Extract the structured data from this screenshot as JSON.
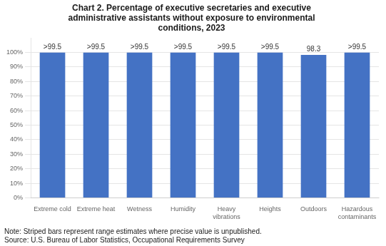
{
  "chart_data": {
    "type": "bar",
    "title": "Chart 2. Percentage of executive secretaries and executive\nadministrative assistants without exposure to environmental\nconditions, 2023",
    "categories": [
      "Extreme cold",
      "Extreme heat",
      "Wetness",
      "Humidity",
      "Heavy\nvibrations",
      "Heights",
      "Outdoors",
      "Hazardous\ncontaminants"
    ],
    "values": [
      99.9,
      99.9,
      99.9,
      99.9,
      99.9,
      99.9,
      98.3,
      99.9
    ],
    "value_labels": [
      ">99.5",
      ">99.5",
      ">99.5",
      ">99.5",
      ">99.5",
      ">99.5",
      "98.3",
      ">99.5"
    ],
    "data_labels": true,
    "color": "#4472C4",
    "ylim": [
      0,
      110
    ],
    "yticks": [
      {
        "value": 0,
        "label": "0%"
      },
      {
        "value": 10,
        "label": "10%"
      },
      {
        "value": 20,
        "label": "20%"
      },
      {
        "value": 30,
        "label": "30%"
      },
      {
        "value": 40,
        "label": "40%"
      },
      {
        "value": 50,
        "label": "50%"
      },
      {
        "value": 60,
        "label": "60%"
      },
      {
        "value": 70,
        "label": "70%"
      },
      {
        "value": 80,
        "label": "80%"
      },
      {
        "value": 90,
        "label": "90%"
      },
      {
        "value": 100,
        "label": "100%"
      }
    ],
    "grid": true,
    "annotations": [
      "Note: Striped bars represent range estimates where precise value is unpublished.",
      "Source: U.S. Bureau of Labor Statistics, Occupational Requirements Survey"
    ]
  }
}
